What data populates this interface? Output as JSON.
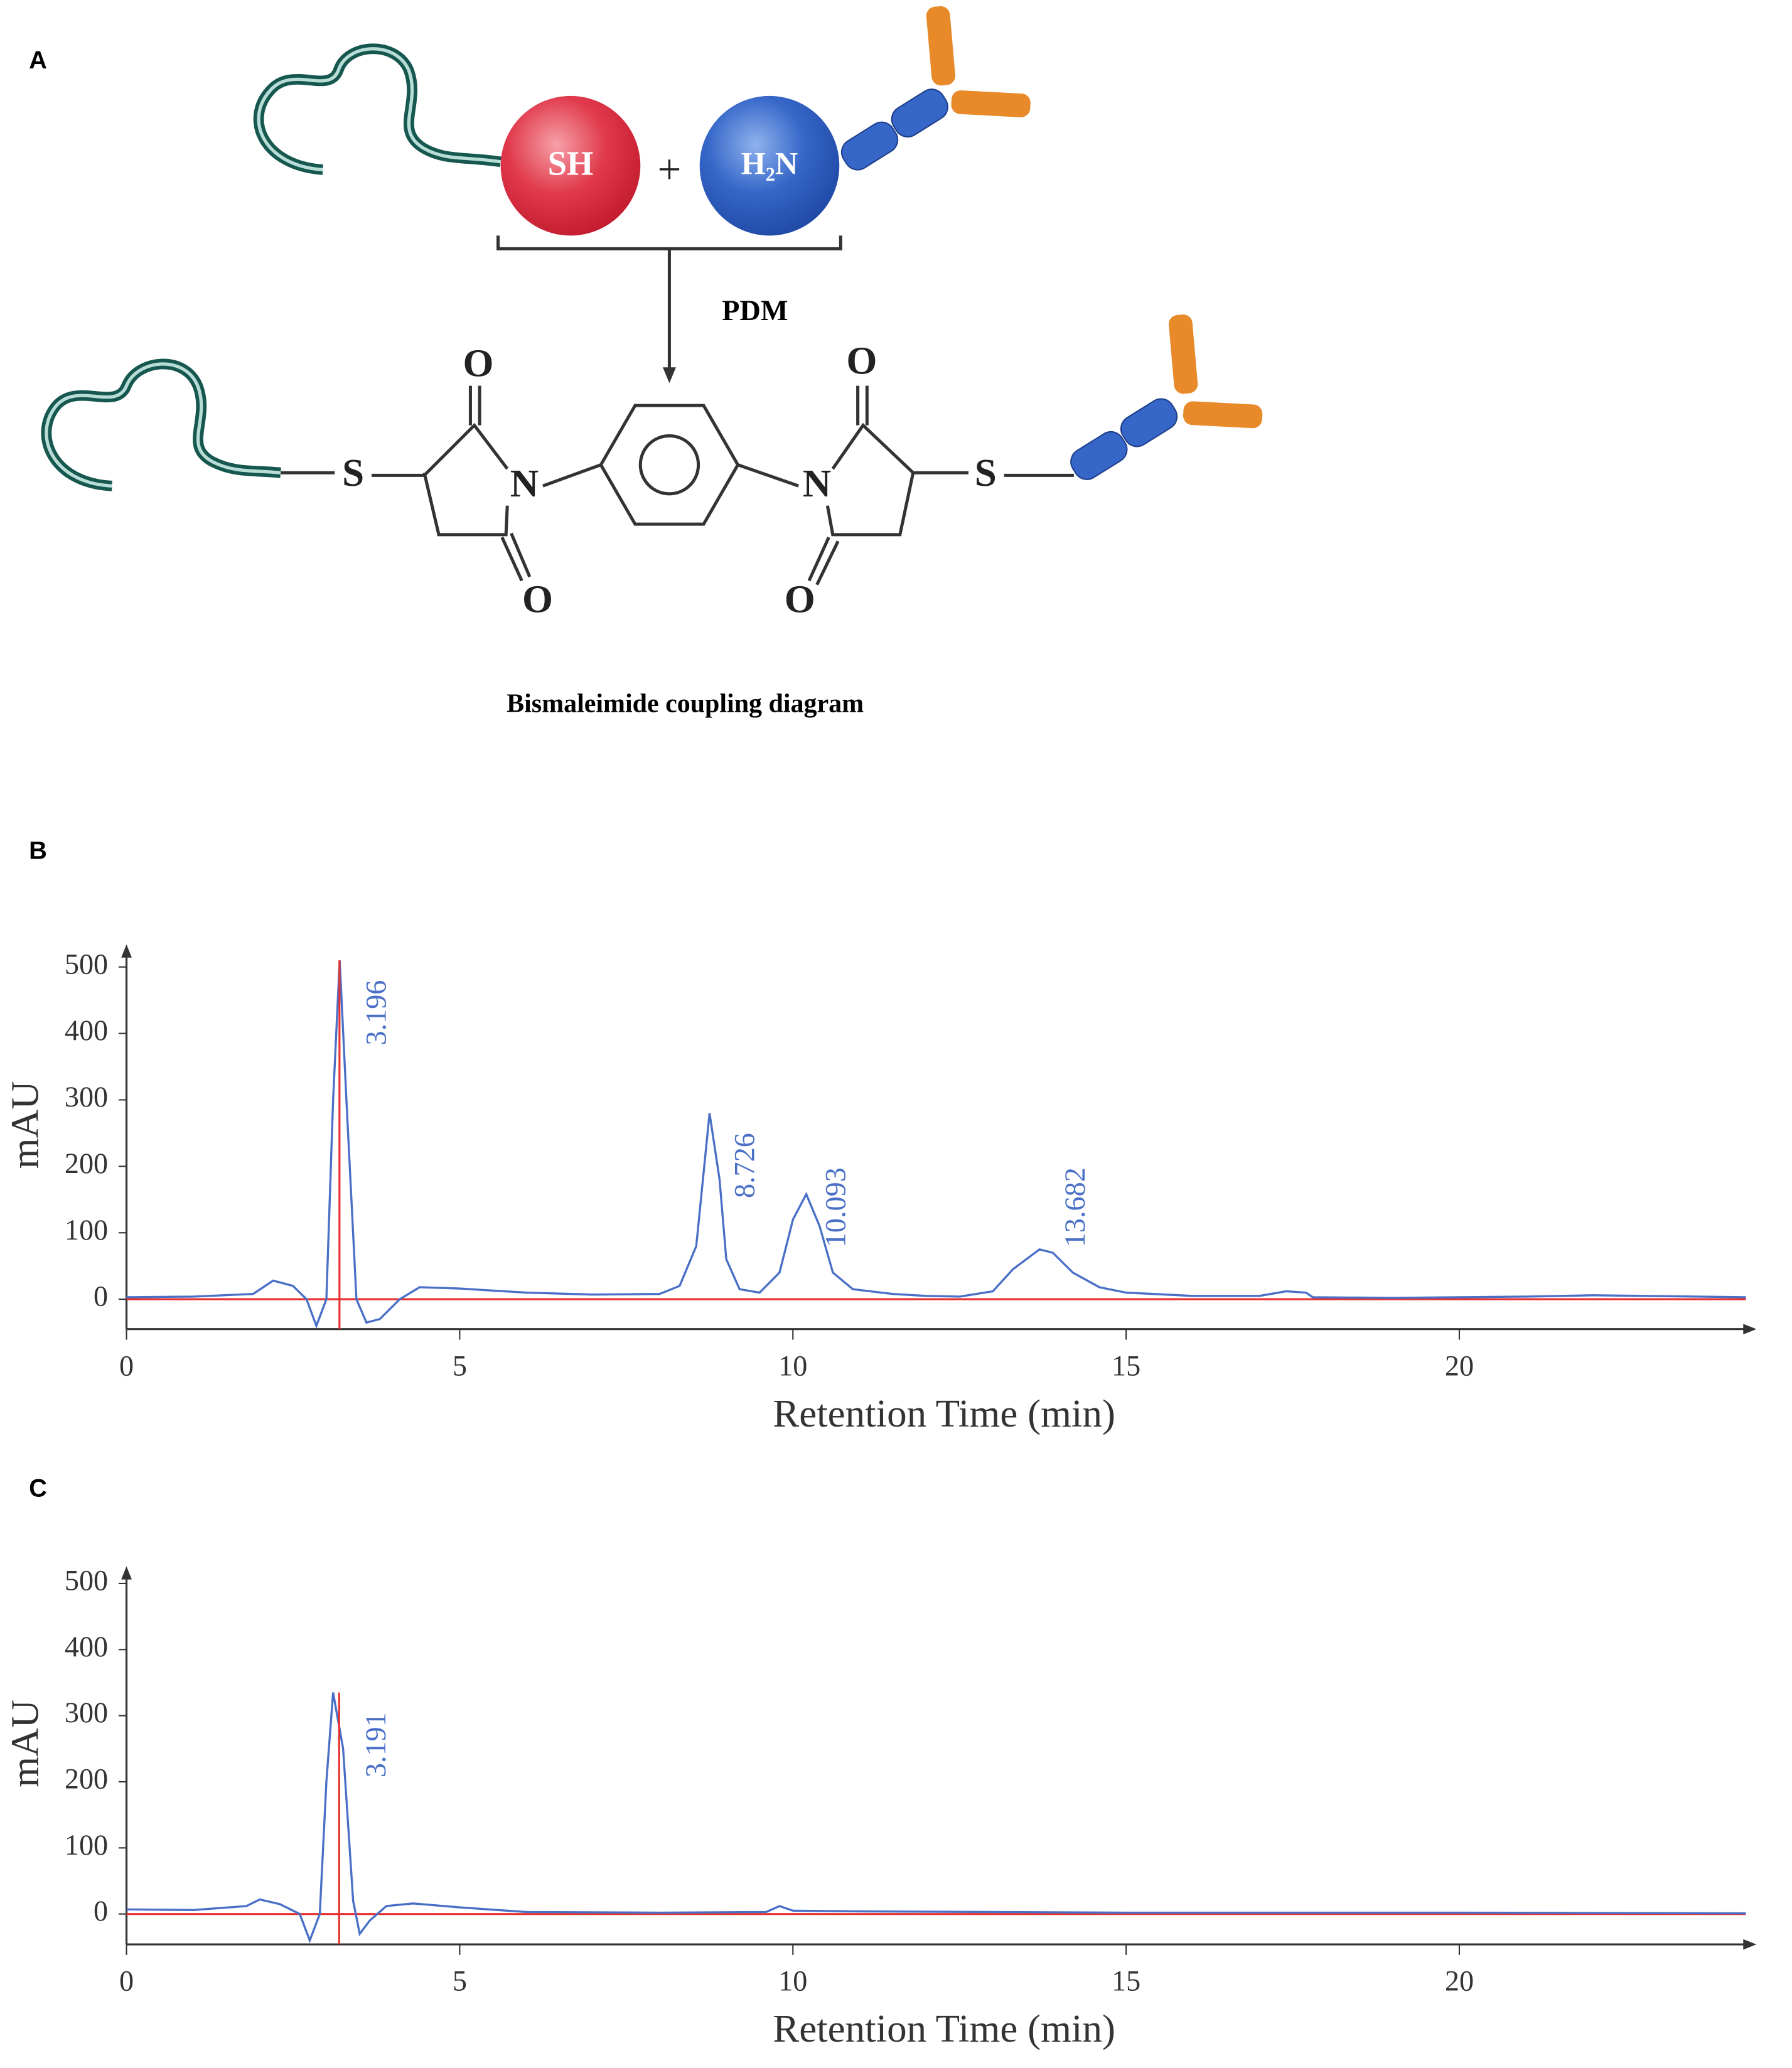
{
  "diagram": {
    "panel": "A",
    "reactant_thiol": "SH",
    "plus": "+",
    "reactant_amine": "H₂N",
    "reagent": "PDM",
    "atoms": {
      "s_left": "S",
      "n_left": "N",
      "o_left_top": "O",
      "o_left_bottom": "O",
      "n_right": "N",
      "o_right_top": "O",
      "o_right_bottom": "O",
      "s_right": "S"
    },
    "caption": "Bismaleimide coupling diagram"
  },
  "chart_data": [
    {
      "type": "line",
      "panel": "B",
      "x_label": "Retention Time (min)",
      "y_label": "mAU",
      "xlim": [
        0,
        24.3
      ],
      "xticks": [
        0,
        5,
        10,
        15,
        20
      ],
      "ylim": [
        -45,
        530
      ],
      "yticks": [
        0,
        100,
        200,
        300,
        400,
        500
      ],
      "series": [
        {
          "color": "#4a6fc7",
          "x": [
            0,
            1,
            1.9,
            2.2,
            2.5,
            2.7,
            2.85,
            3.0,
            3.1,
            3.2,
            3.3,
            3.45,
            3.6,
            3.8,
            4.1,
            4.4,
            5,
            6,
            7,
            8,
            8.3,
            8.55,
            8.75,
            8.9,
            9.0,
            9.2,
            9.5,
            9.8,
            10.0,
            10.2,
            10.4,
            10.6,
            10.9,
            11.5,
            12,
            12.5,
            13,
            13.3,
            13.7,
            13.9,
            14.2,
            14.6,
            15,
            16,
            17,
            17.4,
            17.7,
            17.8,
            19,
            21,
            22,
            24.3
          ],
          "values": [
            3,
            4,
            8,
            28,
            20,
            0,
            -40,
            0,
            300,
            510,
            300,
            0,
            -35,
            -30,
            0,
            18,
            16,
            10,
            7,
            8,
            20,
            80,
            280,
            180,
            60,
            15,
            10,
            40,
            120,
            158,
            110,
            40,
            15,
            8,
            5,
            4,
            12,
            45,
            75,
            70,
            40,
            18,
            10,
            5,
            5,
            12,
            10,
            3,
            2,
            4,
            6,
            3
          ]
        }
      ],
      "baseline_color": "#e8312f",
      "peak_labels": [
        3.196,
        8.726,
        10.093,
        13.682
      ]
    },
    {
      "type": "line",
      "panel": "C",
      "x_label": "Retention Time (min)",
      "y_label": "mAU",
      "xlim": [
        0,
        24.3
      ],
      "xticks": [
        0,
        5,
        10,
        15,
        20
      ],
      "ylim": [
        -46,
        522
      ],
      "yticks": [
        0,
        100,
        200,
        300,
        400,
        500
      ],
      "series": [
        {
          "color": "#4a6fc7",
          "x": [
            0,
            1,
            1.8,
            2.0,
            2.3,
            2.6,
            2.75,
            2.9,
            3.0,
            3.1,
            3.25,
            3.4,
            3.5,
            3.65,
            3.9,
            4.3,
            5,
            6,
            8,
            9.6,
            9.8,
            10,
            11,
            15,
            20,
            24.3
          ],
          "values": [
            7,
            6,
            12,
            22,
            15,
            0,
            -40,
            0,
            200,
            335,
            250,
            20,
            -30,
            -10,
            12,
            16,
            10,
            3,
            2,
            3,
            12,
            5,
            4,
            2,
            2,
            1
          ]
        }
      ],
      "baseline_color": "#e8312f",
      "peak_labels": [
        3.191
      ]
    }
  ]
}
